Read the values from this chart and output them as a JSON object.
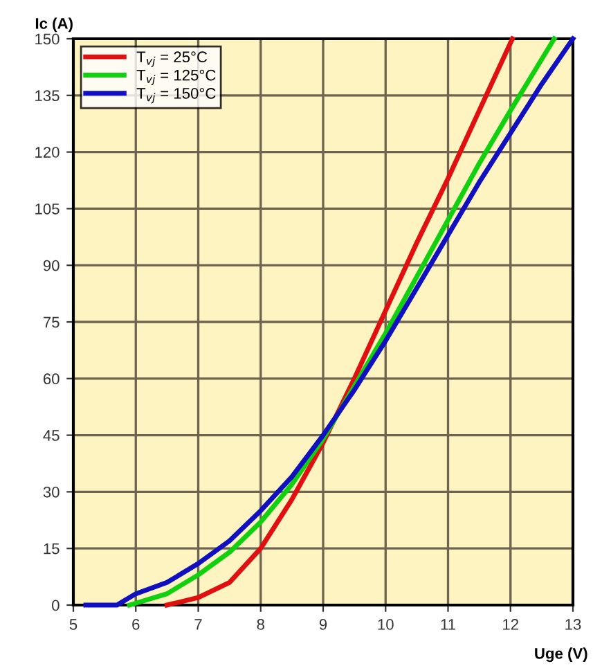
{
  "chart_data": {
    "type": "line",
    "xlabel": "Uge (V)",
    "ylabel": "Ic (A)",
    "xlim": [
      5,
      13
    ],
    "xticks": [
      5,
      6,
      7,
      8,
      9,
      10,
      11,
      12,
      13
    ],
    "ylim": [
      0,
      150
    ],
    "yticks": [
      0,
      15,
      30,
      45,
      60,
      75,
      90,
      105,
      120,
      135,
      150
    ],
    "grid": true,
    "legend": "top left",
    "marker": "none",
    "line_style": "solid",
    "series": [
      {
        "name": "T$_{vj}$ = 25°C",
        "color": "#e01010",
        "x": [
          6.5,
          7,
          7.5,
          8,
          8.5,
          9,
          9.5,
          10,
          10.5,
          11,
          11.5,
          12.03
        ],
        "values": [
          0,
          2,
          6,
          15,
          28,
          43,
          60,
          78,
          96,
          113,
          131,
          150
        ]
      },
      {
        "name": "T$_{vj}$ = 125°C",
        "color": "#10d010",
        "x": [
          5.9,
          6.5,
          7,
          7.5,
          8,
          8.5,
          9,
          9.5,
          10,
          10.5,
          11,
          11.5,
          12,
          12.7
        ],
        "values": [
          0,
          3,
          8,
          14,
          22,
          32,
          44,
          58,
          72,
          87,
          102,
          117,
          131,
          150
        ]
      },
      {
        "name": "T$_{vj}$ = 150°C",
        "color": "#1010c0",
        "x": [
          5.2,
          5.7,
          5.8,
          6,
          6.5,
          7,
          7.5,
          8,
          8.5,
          9,
          9.5,
          10,
          10.5,
          11,
          11.5,
          12,
          12.5,
          13
        ],
        "values": [
          0,
          0,
          1,
          3,
          6,
          11,
          17,
          25,
          34,
          45,
          57,
          70,
          84,
          98,
          112,
          125,
          138,
          150
        ]
      }
    ]
  }
}
